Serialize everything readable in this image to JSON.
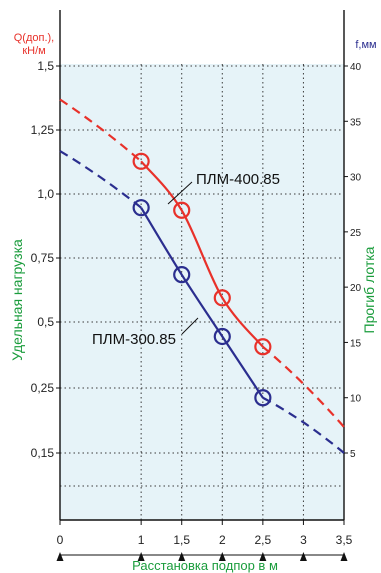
{
  "chart_data": {
    "type": "line",
    "ylabel_left": "Удельная нагрузка",
    "ylabel_left_top": [
      "Q(доп.),",
      "кН/м"
    ],
    "ylabel_right": "Прогиб лотка",
    "ylabel_right_top": "f,мм",
    "xlabel": "Расстановка подпор в м",
    "x_ticks": [
      "0",
      "1",
      "1,5",
      "2",
      "2,5",
      "3",
      "3,5"
    ],
    "y_left_ticks": [
      "1,5",
      "1,25",
      "1,0",
      "0,75",
      "0,5",
      "0,25",
      "0,15"
    ],
    "y_right_ticks": [
      "40",
      "35",
      "30",
      "25",
      "20",
      "15",
      "10",
      "5"
    ],
    "xlim": [
      0,
      3.5
    ],
    "ylim_right": [
      5,
      40
    ],
    "grid": true,
    "series": [
      {
        "name": "ПЛМ-400.85",
        "color": "#e8312a",
        "x": [
          1,
          1.5,
          2,
          2.5
        ],
        "values": [
          1.13,
          0.94,
          0.6,
          0.41
        ],
        "extrapolated": [
          [
            0,
            1.37
          ],
          [
            3.5,
            0.19
          ]
        ]
      },
      {
        "name": "ПЛМ-300.85",
        "color": "#2b2e8f",
        "x": [
          1,
          1.5,
          2,
          2.5
        ],
        "values": [
          0.95,
          0.69,
          0.45,
          0.235
        ],
        "extrapolated": [
          [
            0,
            1.17
          ],
          [
            3.5,
            0.0
          ]
        ]
      }
    ],
    "colors": {
      "left_axis": "#e8312a",
      "right_axis": "#2b2e8f",
      "side_labels": "#1a9c3c",
      "bottom_label": "#1a9c3c",
      "plot_bg": "#e6f3f8"
    }
  }
}
